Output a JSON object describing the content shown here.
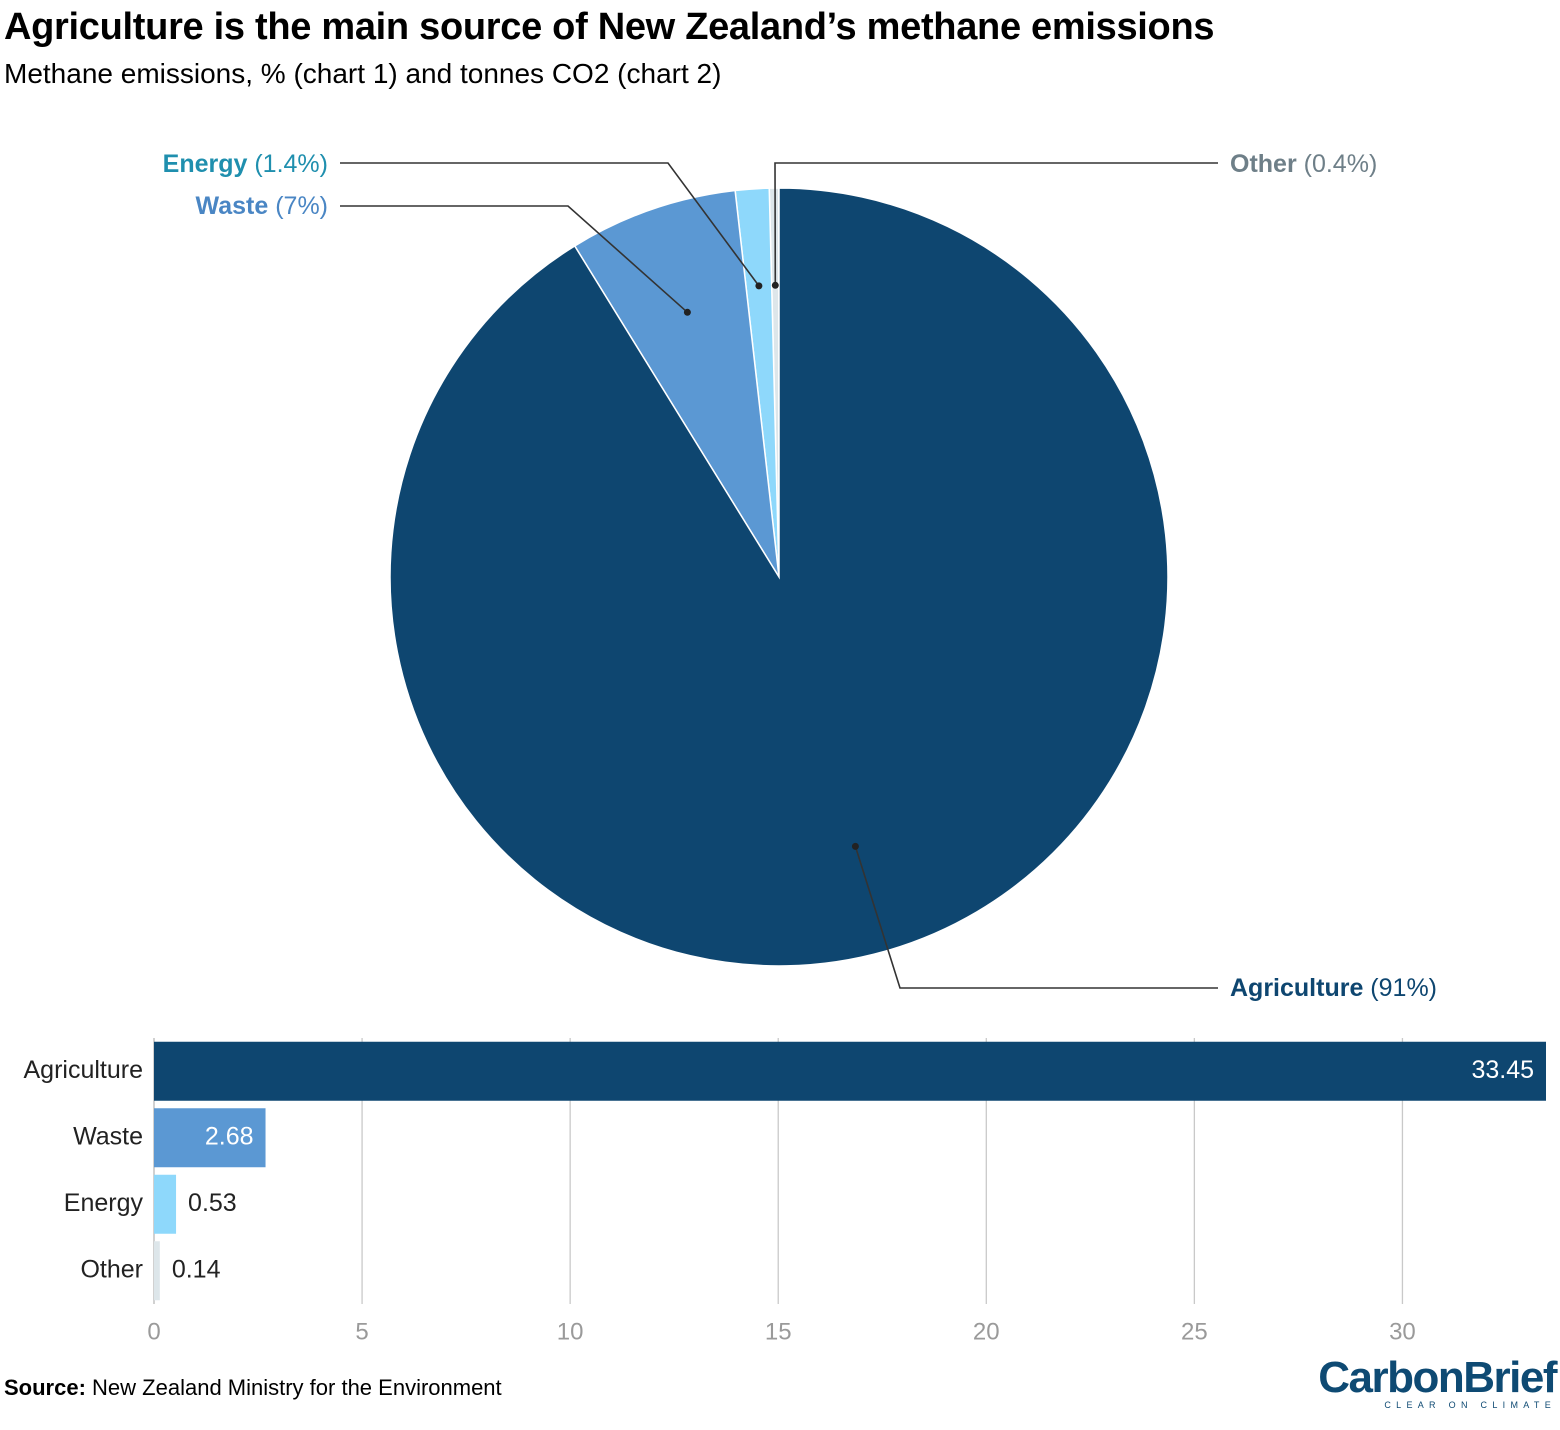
{
  "header": {
    "title": "Agriculture is the main source of New Zealand’s methane emissions",
    "subtitle": "Methane emissions, % (chart 1) and tonnes CO2 (chart 2)"
  },
  "chart_data": [
    {
      "type": "pie",
      "slices": [
        {
          "label": "Agriculture",
          "pct_label": "(91%)",
          "value": 91.2,
          "color": "#0e4670",
          "label_color": "#0e4670"
        },
        {
          "label": "Waste",
          "pct_label": "(7%)",
          "value": 7.0,
          "color": "#5b98d3",
          "label_color": "#4a86c4"
        },
        {
          "label": "Energy",
          "pct_label": "(1.4%)",
          "value": 1.4,
          "color": "#8ed8fb",
          "label_color": "#1f8fae"
        },
        {
          "label": "Other",
          "pct_label": "(0.4%)",
          "value": 0.4,
          "color": "#dde6ea",
          "label_color": "#6e7f88"
        }
      ]
    },
    {
      "type": "bar",
      "orientation": "horizontal",
      "categories": [
        "Agriculture",
        "Waste",
        "Energy",
        "Other"
      ],
      "values": [
        33.45,
        2.68,
        0.53,
        0.14
      ],
      "value_labels": [
        "33.45",
        "2.68",
        "0.53",
        "0.14"
      ],
      "colors": [
        "#0e4670",
        "#5b98d3",
        "#8ed8fb",
        "#dde6ea"
      ],
      "xlim": [
        0,
        33.45
      ],
      "xticks": [
        0,
        5,
        10,
        15,
        20,
        25,
        30
      ],
      "grid": true
    }
  ],
  "footer": {
    "source_label": "Source:",
    "source_text": "New Zealand Ministry for the Environment",
    "logo_text": "CarbonBrief",
    "logo_tagline": "CLEAR ON CLIMATE"
  }
}
